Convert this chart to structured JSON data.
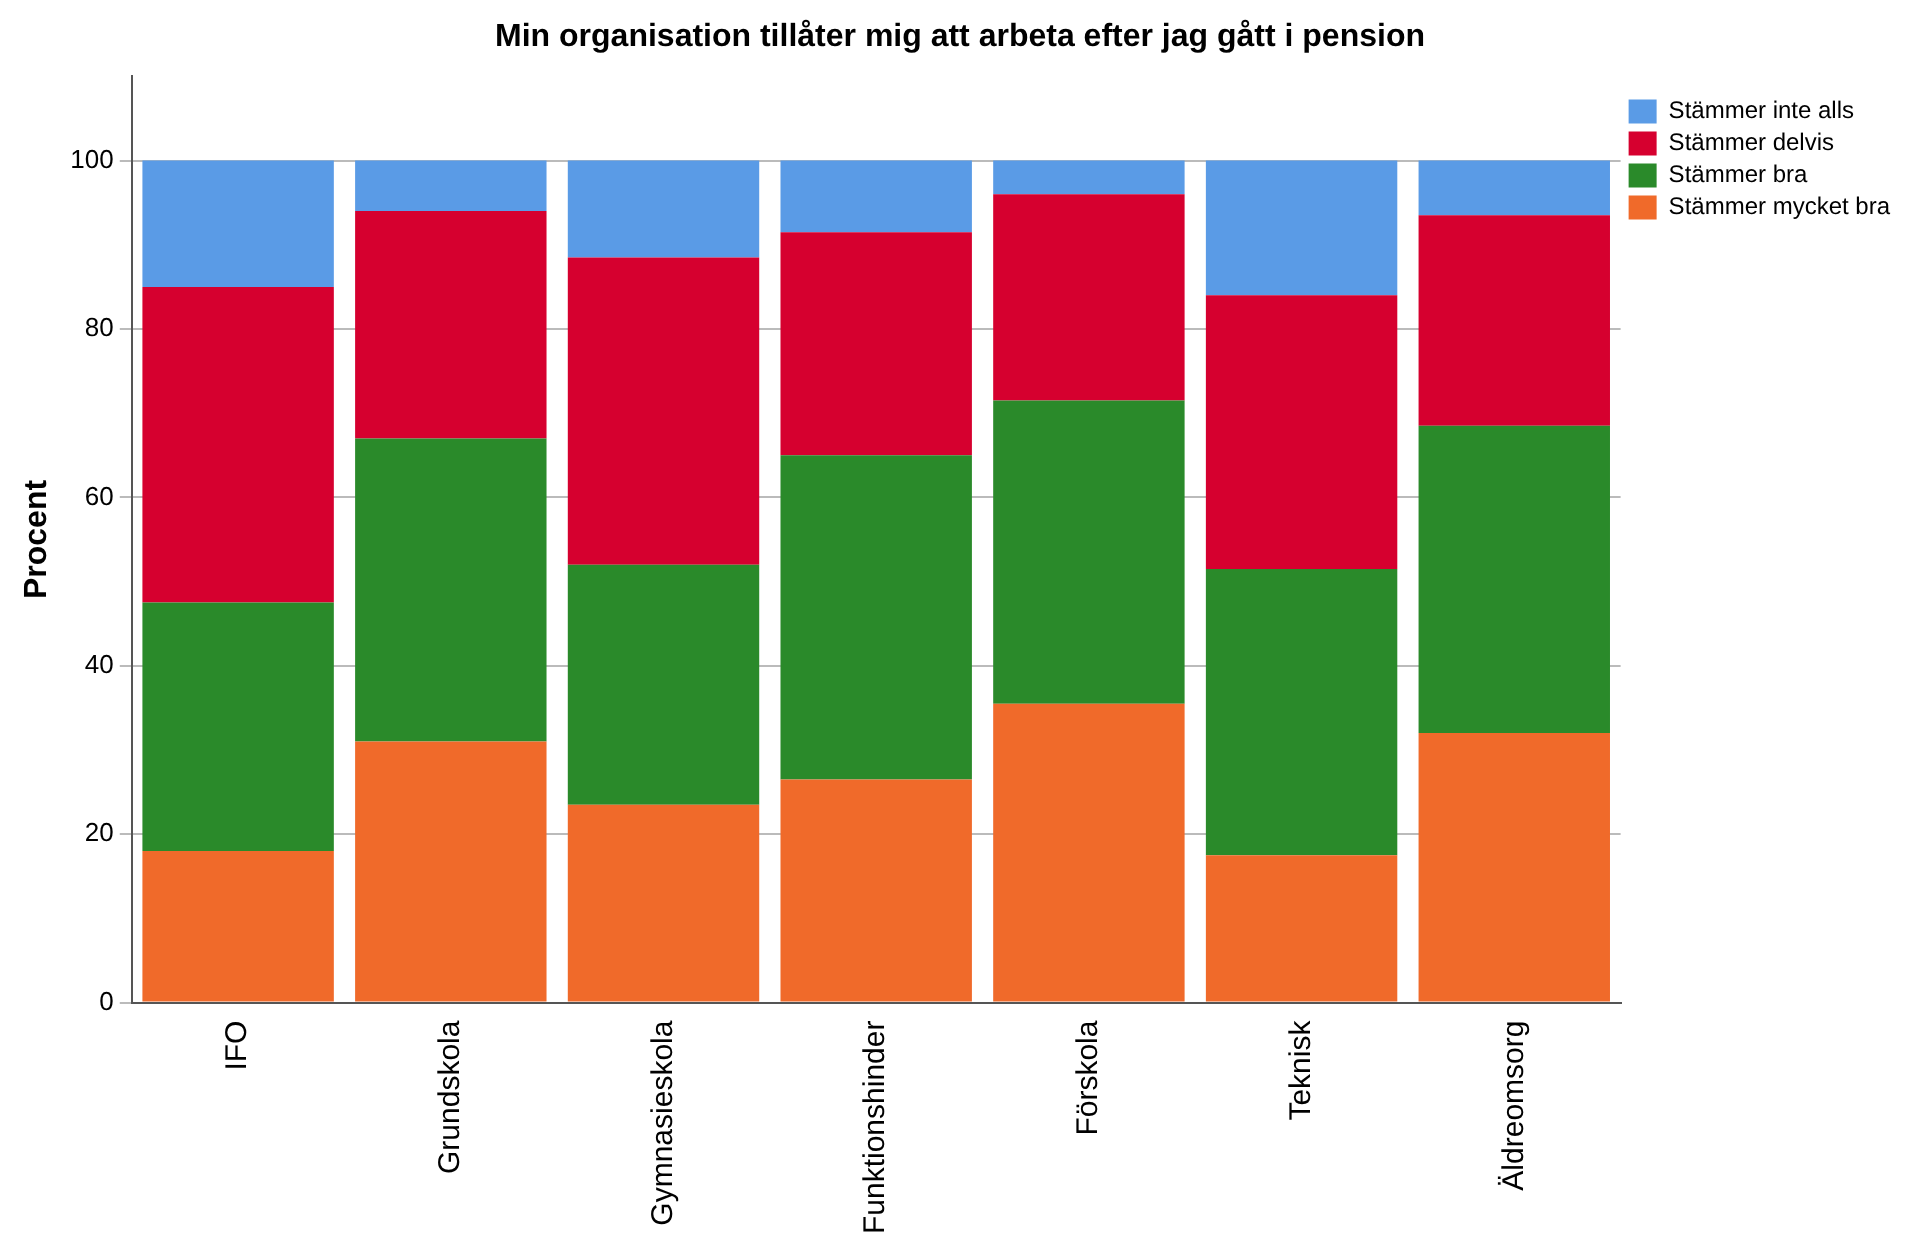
{
  "chart_data": {
    "type": "bar",
    "title": "Min organisation tillåter mig att arbeta efter jag gått i pension",
    "ylabel": "Procent",
    "categories": [
      "IFO",
      "Grundskola",
      "Gymnasieskola",
      "Funktionshinder",
      "Förskola",
      "Teknisk",
      "Äldreomsorg"
    ],
    "stacked": true,
    "series": [
      {
        "name": "Stämmer mycket bra",
        "color": "#f06a2a",
        "values": [
          18,
          31,
          23.5,
          26.5,
          35.5,
          17.5,
          32
        ]
      },
      {
        "name": "Stämmer bra",
        "color": "#2a8a2a",
        "values": [
          29.5,
          36,
          28.5,
          38.5,
          36,
          34,
          36.5
        ]
      },
      {
        "name": "Stämmer delvis",
        "color": "#d6002f",
        "values": [
          37.5,
          27,
          36.5,
          26.5,
          24.5,
          32.5,
          25
        ]
      },
      {
        "name": "Stämmer inte alls",
        "color": "#5a9be6",
        "values": [
          15,
          6,
          11.5,
          8.5,
          4,
          16,
          6.5
        ]
      }
    ],
    "ylim": [
      0,
      110
    ],
    "yticks": [
      0,
      20,
      40,
      60,
      80,
      100
    ],
    "grid": "y",
    "legend": "top right"
  }
}
